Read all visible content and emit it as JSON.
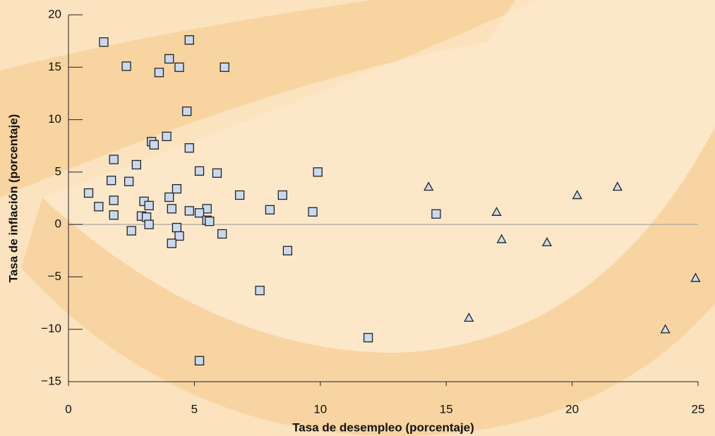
{
  "chart_data": {
    "type": "scatter",
    "x_label": "Tasa de desempleo (porcentaje)",
    "y_label": "Tasa de inflación (porcentaje)",
    "xlim": [
      0,
      25
    ],
    "xticks": [
      0,
      5,
      10,
      15,
      20,
      25
    ],
    "ylim": [
      -15,
      20
    ],
    "yticks": [
      {
        "value": -15,
        "label": "−15"
      },
      {
        "value": -10,
        "label": "−10"
      },
      {
        "value": -5,
        "label": "−5"
      },
      0,
      5,
      10,
      15,
      20
    ],
    "zero_line": true,
    "series": [
      {
        "marker": "square",
        "color": "#c9d9ef",
        "x": [
          1.4,
          2.3,
          4.0,
          4.8,
          3.6,
          4.4,
          6.2,
          4.7,
          3.9,
          3.3,
          3.4,
          4.8,
          1.8,
          2.7,
          5.2,
          5.9,
          9.9,
          1.7,
          2.4,
          0.8,
          4.3,
          4.0,
          6.8,
          8.5,
          1.8,
          3.0,
          1.2,
          3.2,
          4.1,
          8.0,
          4.8,
          5.5,
          5.2,
          9.7,
          1.8,
          2.9,
          3.1,
          14.6,
          5.5,
          5.6,
          3.2,
          4.3,
          2.5,
          6.1,
          4.4,
          4.1,
          8.7,
          7.6,
          11.9,
          5.2
        ],
        "values": [
          17.4,
          15.1,
          15.8,
          17.6,
          14.5,
          15.0,
          15.0,
          10.8,
          8.4,
          7.9,
          7.6,
          7.3,
          6.2,
          5.7,
          5.1,
          4.9,
          5.0,
          4.2,
          4.1,
          3.0,
          3.4,
          2.6,
          2.8,
          2.8,
          2.3,
          2.2,
          1.7,
          1.8,
          1.5,
          1.4,
          1.3,
          1.5,
          1.1,
          1.2,
          0.9,
          0.8,
          0.7,
          1.0,
          0.4,
          0.3,
          0.0,
          -0.3,
          -0.6,
          -0.9,
          -1.1,
          -1.8,
          -2.5,
          -6.3,
          -10.8,
          -13.0
        ]
      },
      {
        "marker": "triangle",
        "color": "#c9d9ef",
        "x": [
          14.3,
          17.0,
          17.2,
          20.2,
          21.8,
          19.0,
          15.9,
          23.7,
          24.9
        ],
        "values": [
          3.6,
          1.2,
          -1.4,
          2.8,
          3.6,
          -1.7,
          -8.9,
          -10.0,
          -5.1
        ]
      }
    ]
  }
}
